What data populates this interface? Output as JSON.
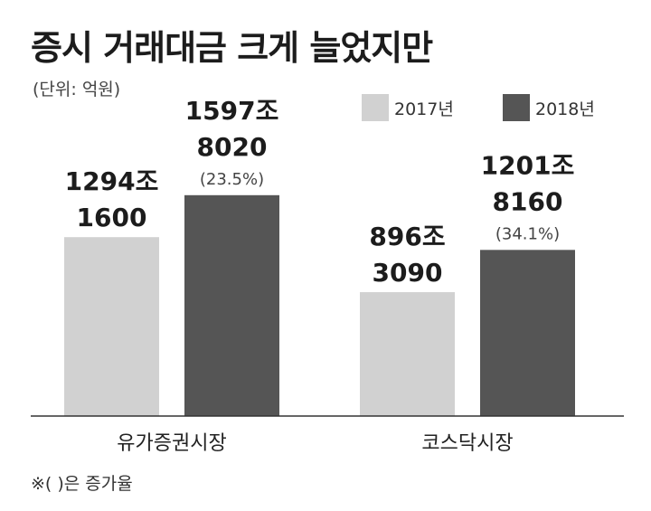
{
  "chart_data": {
    "type": "bar",
    "title": "증시 거래대금 크게 늘었지만",
    "unit_note": "(단위: 억원)",
    "footnote": "※( )은 증가율",
    "categories": [
      "유가증권시장",
      "코스닥시장"
    ],
    "series": [
      {
        "name": "2017년",
        "color": "#d1d1d1",
        "values": [
          12941600,
          8963090
        ],
        "labels": [
          [
            "1294조",
            "1600"
          ],
          [
            "896조",
            "3090"
          ]
        ],
        "growth": [
          "",
          ""
        ]
      },
      {
        "name": "2018년",
        "color": "#555555",
        "values": [
          15978020,
          12018160
        ],
        "labels": [
          [
            "1597조",
            "8020"
          ],
          [
            "1201조",
            "8160"
          ]
        ],
        "growth": [
          "(23.5%)",
          "(34.1%)"
        ]
      }
    ],
    "ylim": [
      0,
      26500000
    ],
    "grid": false,
    "legend_position": "top-right"
  }
}
